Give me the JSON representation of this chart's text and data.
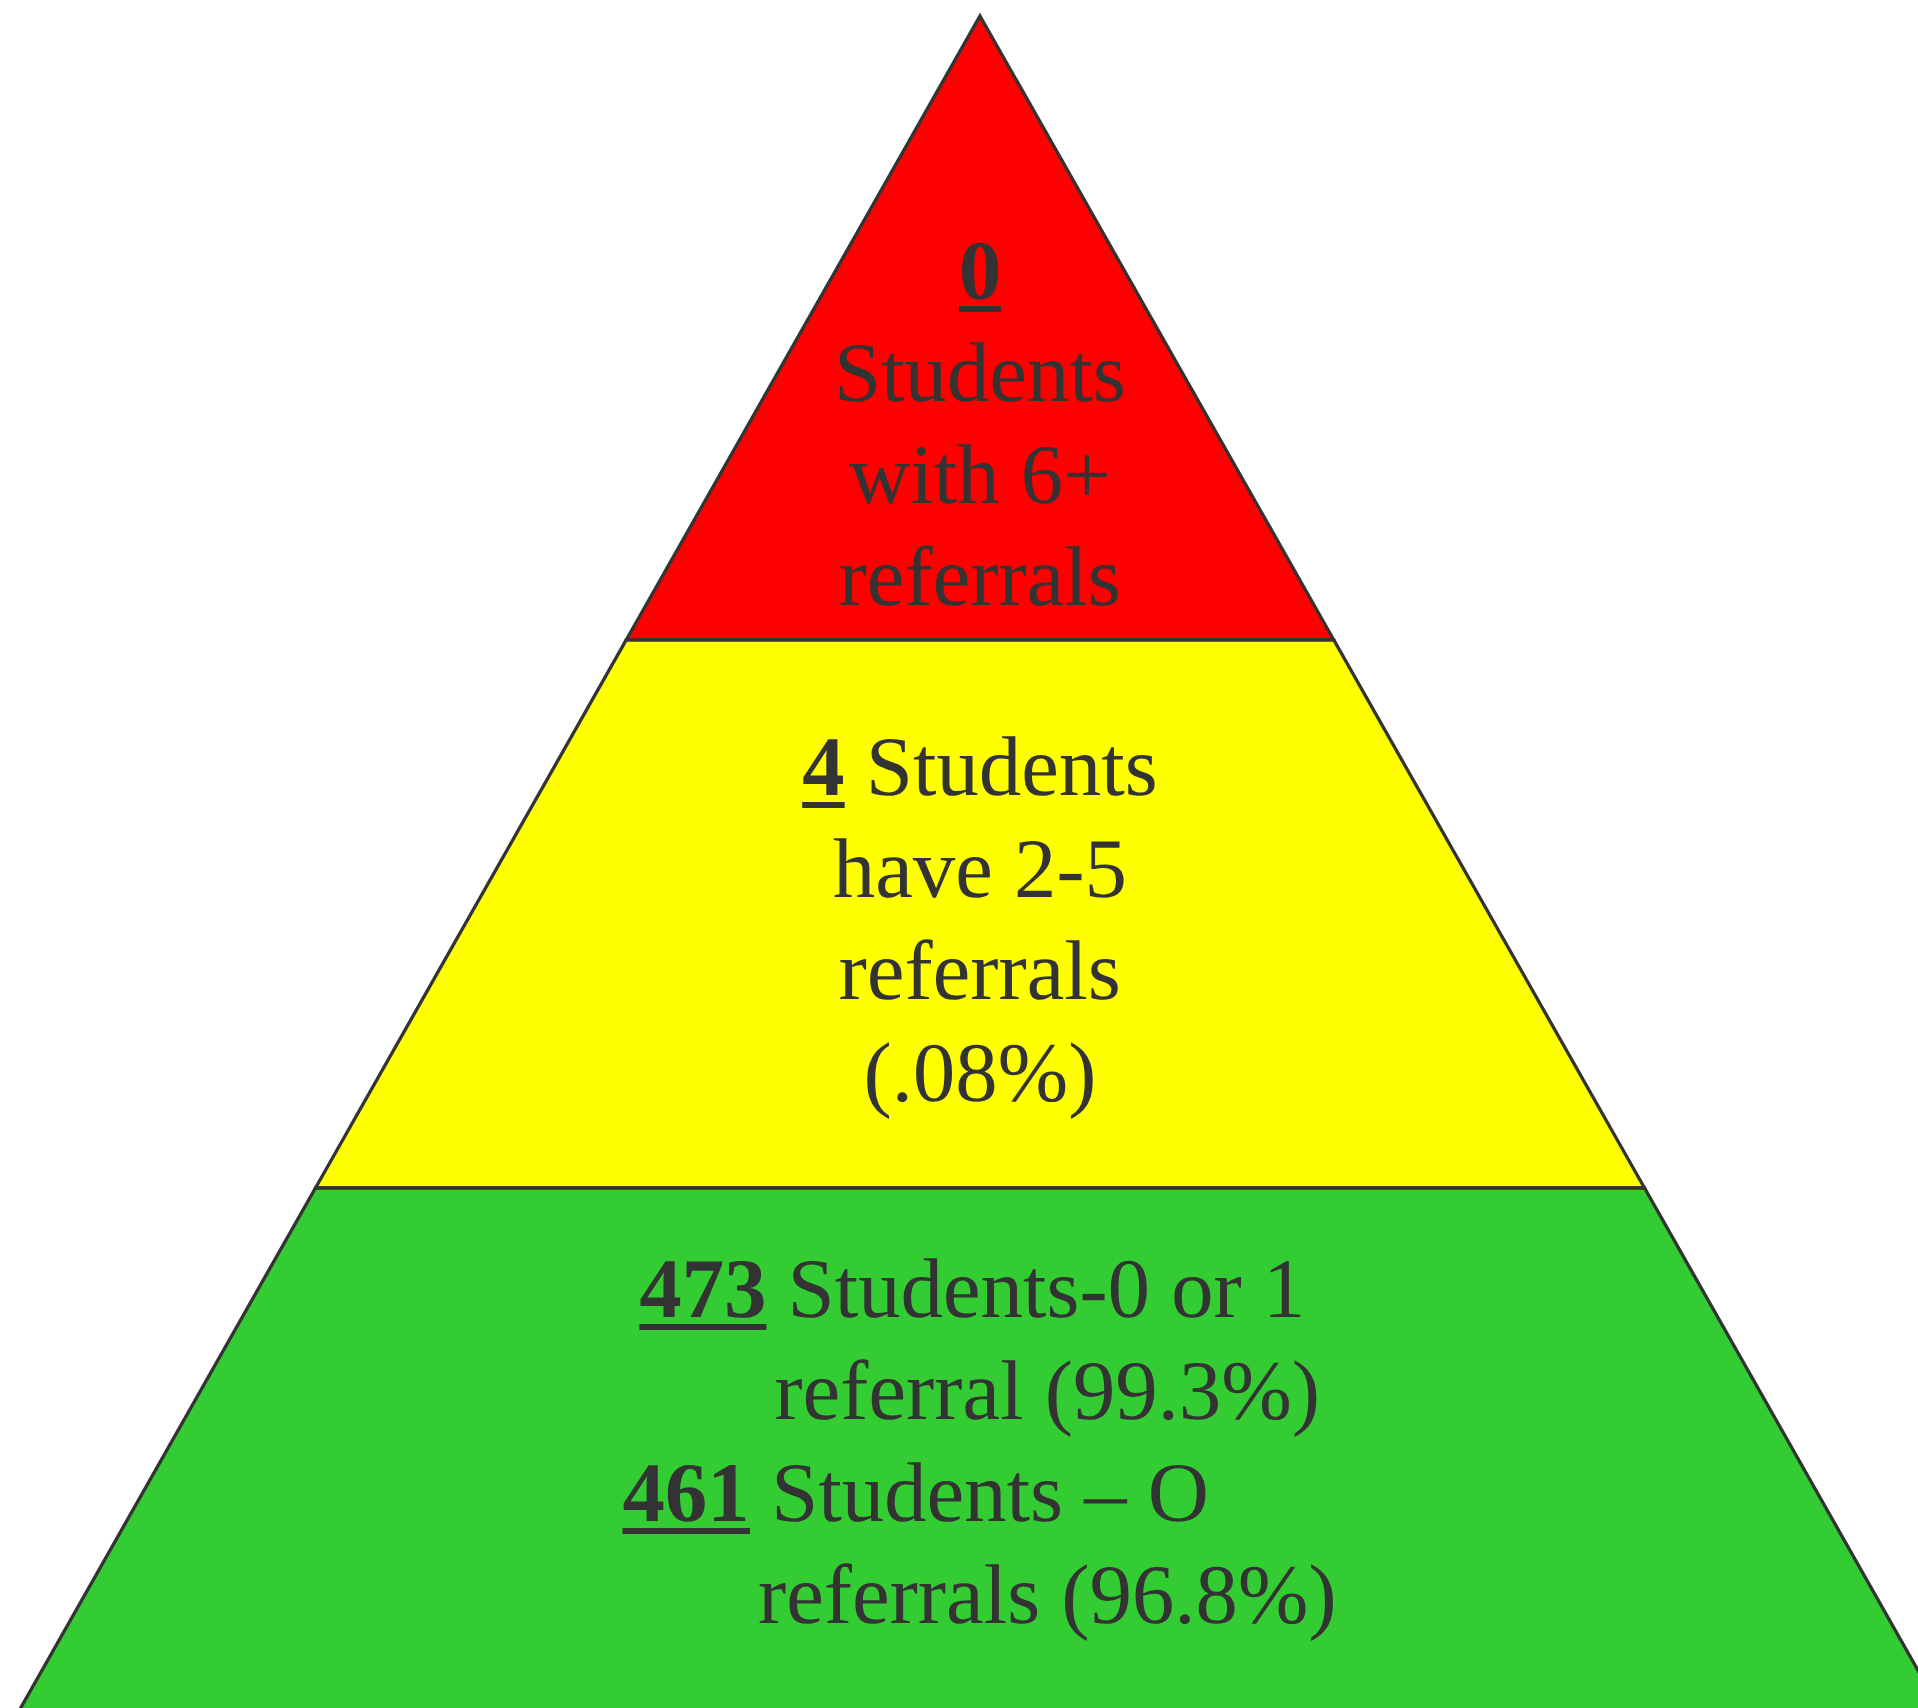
{
  "chart_data": {
    "type": "other",
    "categories": [
      "\nStudents\nwith 6+\nreferrals",
      "Students\nhave 2-5\nreferrals\n(.08%)",
      "Students-0 or 1\nreferral (99.3%)",
      "Students – O\nreferrals (96.8%)"
    ],
    "values": [
      0,
      4,
      473,
      461
    ],
    "data_labels": true,
    "colors": [
      "#ff0000",
      "#ffff00",
      "#33cc33",
      "#33cc33"
    ]
  }
}
